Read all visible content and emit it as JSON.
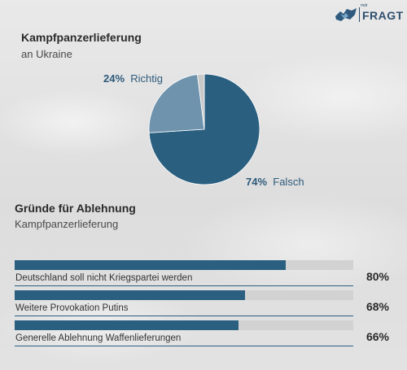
{
  "brand": {
    "small": "mdr",
    "name": "FRAGT"
  },
  "chart_data": [
    {
      "type": "pie",
      "title": "Kampfpanzerlieferung",
      "subtitle": "an Ukraine",
      "slices": [
        {
          "label": "Falsch",
          "value": 74,
          "value_text": "74%",
          "color": "#2a5f80"
        },
        {
          "label": "Richtig",
          "value": 24,
          "value_text": "24%",
          "color": "#6f93ad"
        },
        {
          "label": "",
          "value": 2,
          "value_text": "",
          "color": "#c9c9c9"
        }
      ]
    },
    {
      "type": "bar",
      "orientation": "horizontal",
      "title": "Gründe für Ablehnung",
      "subtitle": "Kampfpanzerlieferung",
      "categories": [
        "Deutschland soll nicht Kriegspartei werden",
        "Weitere Provokation Putins",
        "Generelle Ablehnung Waffenlieferungen"
      ],
      "values": [
        80,
        68,
        66
      ],
      "value_labels": [
        "80%",
        "68%",
        "66%"
      ],
      "xlim": [
        0,
        100
      ],
      "color": "#2a5f80"
    }
  ]
}
